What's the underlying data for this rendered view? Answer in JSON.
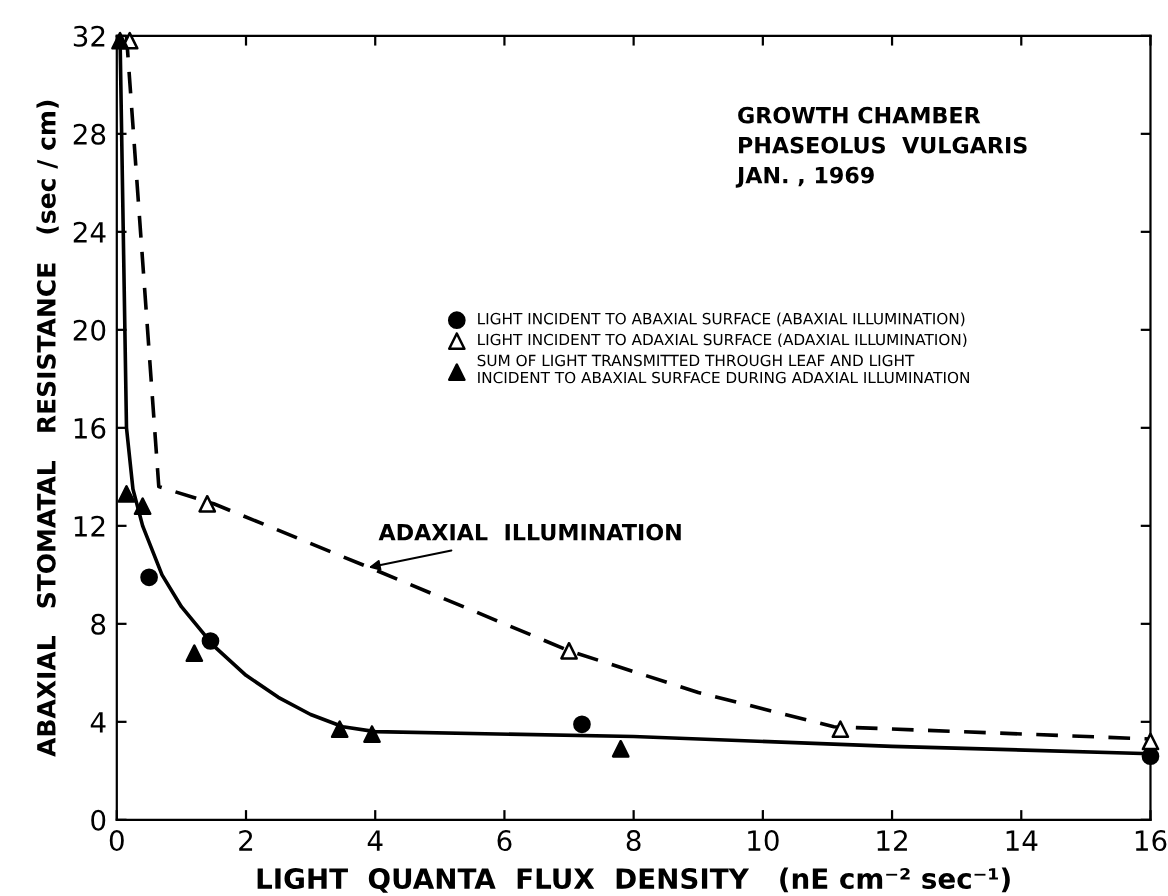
{
  "chart_data": {
    "type": "scatter",
    "xlabel": "LIGHT  QUANTA  FLUX  DENSITY   (nE cm⁻² sec⁻¹)",
    "ylabel": "ABAXIAL   STOMATAL   RESISTANCE   (sec / cm)",
    "xlim": [
      0,
      16
    ],
    "ylim": [
      0,
      32
    ],
    "xticks": [
      0,
      2,
      4,
      6,
      8,
      10,
      12,
      14,
      16
    ],
    "yticks": [
      0,
      4,
      8,
      12,
      16,
      20,
      24,
      28,
      32
    ],
    "grid": false,
    "legend": "center",
    "series": [
      {
        "type": "line",
        "color": "#000000",
        "line_style": "solid",
        "marker": "none",
        "x": [
          0.05,
          0.1,
          0.15,
          0.25,
          0.4,
          0.7,
          1,
          1.5,
          2,
          2.5,
          3,
          3.5,
          4,
          8,
          12,
          16
        ],
        "values": [
          32,
          24,
          16,
          13.5,
          12,
          10,
          8.7,
          7.1,
          5.9,
          5,
          4.3,
          3.8,
          3.6,
          3.4,
          3.0,
          2.7
        ]
      },
      {
        "type": "line",
        "color": "#000000",
        "line_style": "dashed",
        "marker": "none",
        "x": [
          0.15,
          0.65,
          1.5,
          4,
          7,
          9,
          11.1,
          16
        ],
        "values": [
          32,
          13.6,
          12.9,
          10.2,
          6.9,
          5.2,
          3.8,
          3.3
        ]
      },
      {
        "name": "LIGHT INCIDENT TO ABAXIAL SURFACE (ABAXIAL ILLUMINATION)",
        "color": "#000000",
        "marker": "circle",
        "x": [
          0.5,
          1.45,
          7.2,
          16
        ],
        "values": [
          9.9,
          7.3,
          3.9,
          2.6
        ]
      },
      {
        "name": "LIGHT INCIDENT TO ADAXIAL SURFACE (ADAXIAL ILLUMINATION)",
        "color": "#ffffff",
        "marker": "triangle",
        "x": [
          0.2,
          1.4,
          7.0,
          11.2,
          16
        ],
        "values": [
          31.8,
          12.9,
          6.9,
          3.7,
          3.2
        ]
      },
      {
        "name": "SUM OF LIGHT TRANSMITTED THROUGH LEAF AND LIGHT\nINCIDENT TO ABAXIAL SURFACE DURING ADAXIAL ILLUMINATION",
        "color": "#000000",
        "marker": "triangle",
        "x": [
          0.05,
          0.15,
          0.4,
          1.2,
          3.45,
          3.95,
          7.8
        ],
        "values": [
          31.8,
          13.3,
          12.8,
          6.8,
          3.7,
          3.5,
          2.9
        ]
      }
    ],
    "annotations": [
      "GROWTH CHAMBER\nPHASEOLUS  VULGARIS\nJAN. , 1969",
      {
        "text": "ADAXIAL  ILLUMINATION",
        "x": 3.9,
        "y": 10.3
      }
    ]
  }
}
